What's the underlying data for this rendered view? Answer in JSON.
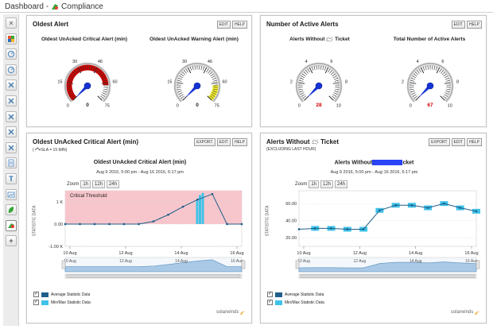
{
  "page": {
    "title_prefix": "Dashboard - ",
    "title": "Compliance"
  },
  "sidebar": {
    "items": [
      {
        "name": "close-icon",
        "glyph": "×"
      },
      {
        "name": "grid-icon"
      },
      {
        "name": "gauge-icon"
      },
      {
        "name": "gauge-icon"
      },
      {
        "name": "network-icon"
      },
      {
        "name": "network-icon"
      },
      {
        "name": "network-icon"
      },
      {
        "name": "network-icon"
      },
      {
        "name": "network-icon"
      },
      {
        "name": "page-icon"
      },
      {
        "name": "text-icon",
        "glyph": "T"
      },
      {
        "name": "image-icon"
      },
      {
        "name": "leaf-icon"
      },
      {
        "name": "compliance-icon"
      },
      {
        "name": "add-icon",
        "glyph": "+"
      }
    ]
  },
  "buttons": {
    "edit": "EDIT",
    "help": "HELP",
    "export": "EXPORT"
  },
  "oldest_alert": {
    "title": "Oldest Alert",
    "gauges": [
      {
        "label": "Oldest UnAcked Critical Alert (min)",
        "min": 0,
        "max": 75,
        "ticks": [
          "0",
          "15",
          "30",
          "46",
          "60",
          "75"
        ],
        "value": 0,
        "value_text": "0",
        "value_color": "#222222",
        "zone_color": "#d40000",
        "zone_from": 0,
        "zone_to": 62,
        "needle_value": 0
      },
      {
        "label": "Oldest UnAcked Warning Alert (min)",
        "min": 0,
        "max": 75,
        "ticks": [
          "0",
          "15",
          "30",
          "46",
          "60",
          "75"
        ],
        "value": 0,
        "value_text": "0",
        "value_color": "#222222",
        "zone_color": "#f2ef2c",
        "zone_from": 62,
        "zone_to": 75,
        "needle_value": 0
      }
    ]
  },
  "active_alerts": {
    "title": "Number of Active Alerts",
    "gauges": [
      {
        "label_a": "Alerts Without",
        "label_b": "Ticket",
        "min": 0,
        "max": 10,
        "ticks": [
          "0",
          "2",
          "4",
          "6",
          "8",
          "10"
        ],
        "value": 28,
        "value_text": "28",
        "value_color": "#d40000",
        "needle_value": 0
      },
      {
        "label": "Total Number of Active Alerts",
        "min": 0,
        "max": 10,
        "ticks": [
          "0",
          "2",
          "4",
          "6",
          "8",
          "10"
        ],
        "value": 67,
        "value_text": "67",
        "value_color": "#d40000",
        "needle_value": 0
      }
    ]
  },
  "critical_chart": {
    "title": "Oldest UnAcked Critical Alert (min)",
    "subtitle": "SLA = 15 MIN)",
    "chart_title": "Oldest UnAcked Critical Alert (min)",
    "range": "Aug 9 2016, 5:00 pm - Aug 16 2016, 6:17 pm",
    "zoom_label": "Zoom",
    "zoom_options": [
      "1h",
      "12h",
      "24h"
    ],
    "ylabel": "STATISTIC DATA",
    "threshold_label": "Critical Threshold",
    "threshold_color": "#f7c6cc",
    "legend": [
      {
        "label": "Average Statistic Data",
        "color": "#1f5f8b"
      },
      {
        "label": "Min/Max Statistic Data",
        "color": "#3fc3e8"
      }
    ],
    "logo": "solarwinds"
  },
  "ticket_chart": {
    "title_a": "Alerts Without",
    "title_b": "Ticket",
    "subtitle": "(EXCLUDING LAST HOUR)",
    "chart_title_a": "Alerts Without",
    "chart_title_b": "cket",
    "range": "Aug 9 2016, 5:00 pm - Aug 16 2016, 6:17 pm",
    "zoom_label": "Zoom",
    "zoom_options": [
      "1h",
      "12h",
      "24h"
    ],
    "ylabel": "STATISTIC DATA",
    "legend": [
      {
        "label": "Average Statistic Data",
        "color": "#1f5f8b"
      },
      {
        "label": "Min/Max Statistic Data",
        "color": "#3fc3e8"
      }
    ],
    "logo": "solarwinds"
  },
  "chart_data": [
    {
      "type": "line",
      "title": "Oldest UnAcked Critical Alert (min)",
      "ylabel": "STATISTIC DATA",
      "x_ticks": [
        "10 Aug",
        "12 Aug",
        "14 Aug",
        "16 Aug"
      ],
      "y_ticks": [
        "1 K",
        "0.00",
        "-1.00 K"
      ],
      "ylim": [
        -1000,
        1500
      ],
      "x": [
        "Aug 9 17:00",
        "Aug 10",
        "Aug 11",
        "Aug 12",
        "Aug 13",
        "Aug 14",
        "Aug 14 12:00",
        "Aug 15",
        "Aug 15 06:00",
        "Aug 15 12:00",
        "Aug 15 18:00",
        "Aug 16",
        "Aug 16 18:17"
      ],
      "series": [
        {
          "name": "Average Statistic Data",
          "values": [
            0,
            0,
            0,
            0,
            0,
            0,
            120,
            420,
            780,
            1100,
            1350,
            0,
            0
          ]
        }
      ],
      "minmax_bars": [
        1050,
        1300,
        1400
      ],
      "navigator_x_ticks": [
        "10 Aug",
        "12 Aug",
        "14 Aug",
        "16 Aug"
      ]
    },
    {
      "type": "line",
      "title": "Alerts Without cket",
      "ylabel": "STATISTIC DATA",
      "x_ticks": [
        "10 Aug",
        "12 Aug",
        "14 Aug",
        "16 Aug"
      ],
      "y_ticks": [
        "60.00",
        "40.00",
        "20.00"
      ],
      "ylim": [
        10,
        75
      ],
      "x": [
        "Aug 9 17:00",
        "Aug 10",
        "Aug 11",
        "Aug 12",
        "Aug 13",
        "Aug 13 12:00",
        "Aug 14",
        "Aug 14 12:00",
        "Aug 15",
        "Aug 15 12:00",
        "Aug 16",
        "Aug 16 18:17"
      ],
      "series": [
        {
          "name": "Average Statistic Data",
          "values": [
            30,
            31,
            31,
            30,
            30,
            52,
            58,
            58,
            55,
            60,
            55,
            51
          ]
        }
      ],
      "navigator_x_ticks": [
        "10 Aug",
        "12 Aug",
        "14 Aug",
        "16 Aug"
      ]
    }
  ]
}
